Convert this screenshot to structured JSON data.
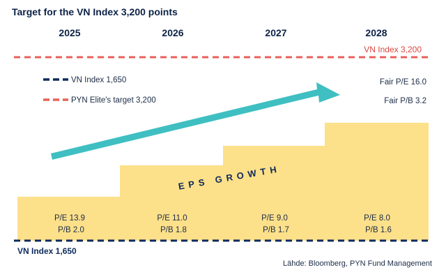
{
  "title": "Target for the VN Index 3,200 points",
  "source": "Lähde: Bloomberg, PYN Fund Management",
  "colors": {
    "navy": "#0d2a5c",
    "red": "#e8605a",
    "yellow": "#fde08a",
    "teal": "#3fbfc2"
  },
  "chart_data": {
    "type": "bar",
    "categories": [
      "2025",
      "2026",
      "2027",
      "2028"
    ],
    "series": [
      {
        "name": "EPS GROWTH",
        "values": [
          1650,
          2100,
          2500,
          3200
        ]
      }
    ],
    "pe": [
      "P/E 13.9",
      "P/E 11.0",
      "P/E 9.0",
      "P/E 8.0"
    ],
    "pb": [
      "P/B 2.0",
      "P/B 1.8",
      "P/B 1.7",
      "P/B 1.6"
    ],
    "ylim": [
      1400,
      3300
    ],
    "baseline_value": 1650,
    "baseline_label": "VN Index 1,650",
    "target_value": 3200,
    "target_label": "VN Index 3,200",
    "fair_pe": "Fair P/E 16.0",
    "fair_pb": "Fair P/B 3.2",
    "legend": [
      {
        "label": "VN Index 1,650",
        "color": "#0d2a5c"
      },
      {
        "label": "PYN Elite's target 3,200",
        "color": "#e8605a"
      }
    ],
    "growth_label": "EPS GROWTH",
    "legend_position": "top-left",
    "grid": false
  }
}
